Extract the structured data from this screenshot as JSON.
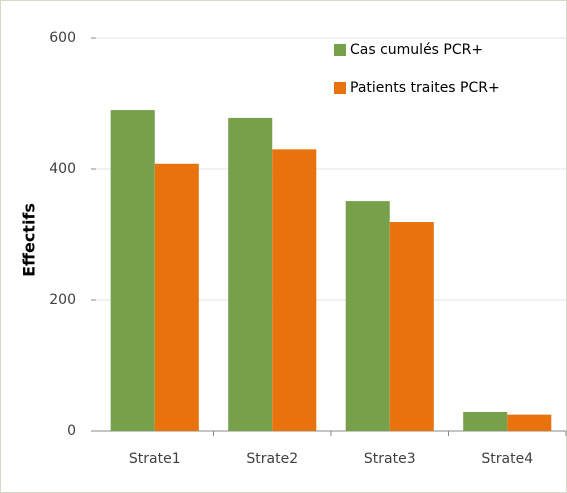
{
  "chart_data": {
    "type": "bar",
    "y_label": "Effectifs",
    "categories": [
      "Strate1",
      "Strate2",
      "Strate3",
      "Strate4"
    ],
    "series": [
      {
        "name": "Cas cumulés PCR+",
        "color": "#77a04b",
        "values": [
          490,
          478,
          351,
          29
        ]
      },
      {
        "name": "Patients traites PCR+",
        "color": "#e8720c",
        "values": [
          408,
          430,
          319,
          25
        ]
      }
    ],
    "ylim": [
      0,
      600
    ],
    "yticks": [
      0,
      200,
      400,
      600
    ],
    "grid": true,
    "legend": "top-right"
  }
}
